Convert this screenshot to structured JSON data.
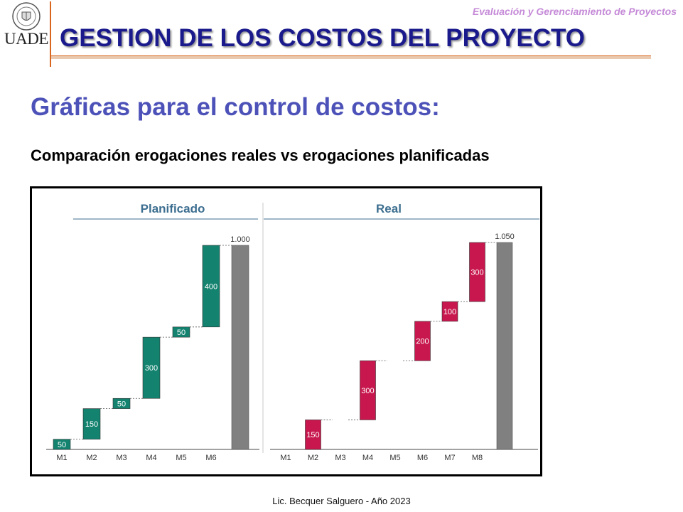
{
  "header": {
    "course": "Evaluación y Gerenciamiento de Proyectos",
    "logo_text": "UADE",
    "title": "GESTION DE LOS COSTOS DEL PROYECTO",
    "accent_color": "#d9661f",
    "title_color": "#1a1a8c"
  },
  "slide": {
    "subtitle": "Gráficas para el control de costos:",
    "heading": "Comparación erogaciones reales vs erogaciones planificadas"
  },
  "footer": {
    "text": "Lic. Becquer Salguero - Año 2023"
  },
  "chart_data": [
    {
      "type": "bar",
      "variant": "waterfall",
      "title": "Planificado",
      "categories": [
        "M1",
        "M2",
        "M3",
        "M4",
        "M5",
        "M6"
      ],
      "values": [
        50,
        150,
        50,
        300,
        50,
        400
      ],
      "total": 1000,
      "total_label": "1.000",
      "ylim": [
        0,
        1050
      ],
      "color": "#13826f",
      "total_color": "#808080",
      "grid": false
    },
    {
      "type": "bar",
      "variant": "waterfall",
      "title": "Real",
      "categories": [
        "M1",
        "M2",
        "M3",
        "M4",
        "M5",
        "M6",
        "M7",
        "M8"
      ],
      "values": [
        0,
        150,
        0,
        300,
        0,
        200,
        100,
        300
      ],
      "total": 1050,
      "total_label": "1.050",
      "ylim": [
        0,
        1050
      ],
      "color": "#c8174e",
      "total_color": "#808080",
      "grid": false
    }
  ]
}
